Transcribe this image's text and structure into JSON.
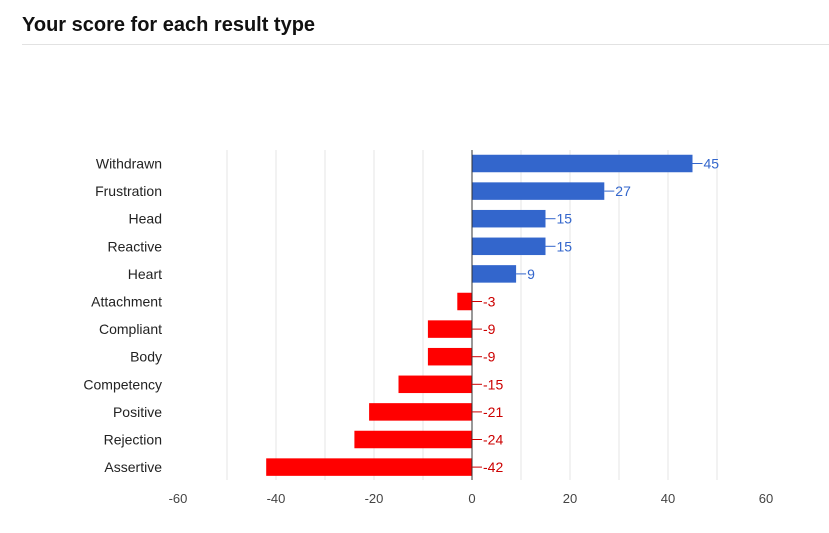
{
  "header": {
    "title": "Your score for each result type"
  },
  "colors": {
    "positive": "#3366cc",
    "negative": "#ff0000",
    "positive_label": "#3366cc",
    "negative_label": "#cc0000",
    "gridline": "#e6e6e6",
    "zero_axis": "#333333",
    "tick_label": "#444444",
    "category_label": "#222222"
  },
  "chart_data": {
    "type": "bar",
    "orientation": "horizontal",
    "title": "",
    "xlabel": "",
    "ylabel": "",
    "categories": [
      "Withdrawn",
      "Frustration",
      "Head",
      "Reactive",
      "Heart",
      "Attachment",
      "Compliant",
      "Body",
      "Competency",
      "Positive",
      "Rejection",
      "Assertive"
    ],
    "values": [
      45,
      27,
      15,
      15,
      9,
      -3,
      -9,
      -9,
      -15,
      -21,
      -24,
      -42
    ],
    "data_labels": [
      "45",
      "27",
      "15",
      "15",
      "9",
      "-3",
      "-9",
      "-9",
      "-15",
      "-21",
      "-24",
      "-42"
    ],
    "xlim": [
      -60,
      60
    ],
    "x_ticks": [
      -60,
      -40,
      -20,
      0,
      20,
      40,
      60
    ],
    "x_tick_labels": [
      "-60",
      "-40",
      "-20",
      "0",
      "20",
      "40",
      "60"
    ],
    "grid": true,
    "legend": "none"
  }
}
